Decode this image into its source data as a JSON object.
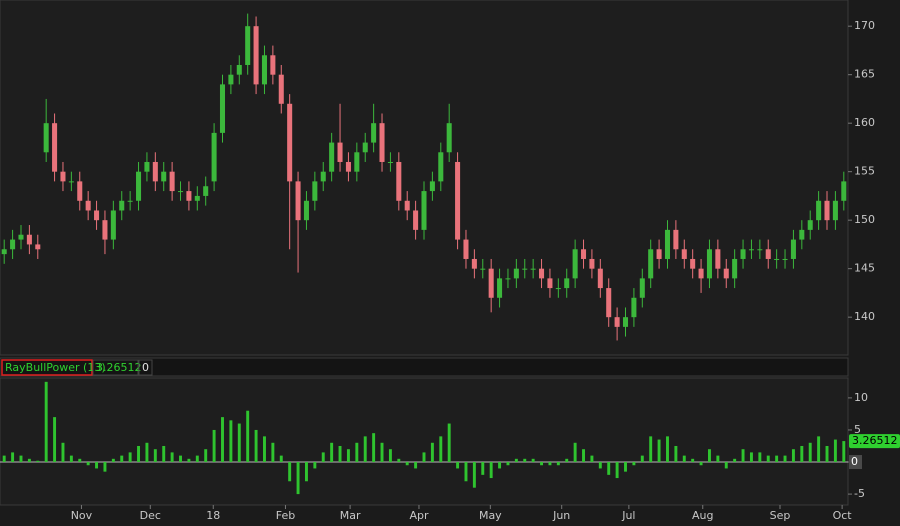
{
  "chart_data": [
    {
      "type": "candlestick",
      "up_color": "#3cb83c",
      "down_color": "#e9737b",
      "xlim": [
        -0.5,
        100.5
      ],
      "ylim": [
        136.1,
        172.7
      ],
      "yticks": [
        140,
        145,
        150,
        155,
        160,
        165,
        170
      ],
      "xticks": [
        {
          "value": 9.2,
          "label": "Nov"
        },
        {
          "value": 17.4,
          "label": "Dec"
        },
        {
          "value": 24.9,
          "label": "18"
        },
        {
          "value": 33.5,
          "label": "Feb"
        },
        {
          "value": 41.2,
          "label": "Mar"
        },
        {
          "value": 49.4,
          "label": "Apr"
        },
        {
          "value": 57.9,
          "label": "May"
        },
        {
          "value": 66.4,
          "label": "Jun"
        },
        {
          "value": 74.4,
          "label": "Jul"
        },
        {
          "value": 83.2,
          "label": "Aug"
        },
        {
          "value": 92.4,
          "label": "Sep"
        },
        {
          "value": 99.8,
          "label": "Oct"
        }
      ],
      "open": [
        146.5,
        147,
        148,
        148.5,
        147.5,
        157,
        160,
        155,
        154,
        154,
        152,
        151,
        150,
        148,
        151,
        152,
        152,
        155,
        156,
        154,
        155,
        153,
        153,
        152,
        152.5,
        154,
        159,
        164,
        165,
        166,
        170,
        164,
        167,
        165,
        162,
        154,
        150,
        152,
        154,
        155,
        158,
        156,
        155,
        157,
        158,
        160,
        156,
        156,
        152,
        151,
        149,
        153,
        154,
        157,
        156,
        148,
        146,
        145,
        145,
        142,
        144,
        144,
        145,
        145,
        145,
        144,
        143,
        143,
        144,
        147,
        146,
        145,
        143,
        140,
        139,
        140,
        142,
        144,
        147,
        146,
        149,
        147,
        146,
        145,
        144,
        147,
        145,
        144,
        146,
        147,
        147,
        147,
        146,
        146,
        146,
        148,
        149,
        150,
        152,
        150,
        152
      ],
      "high": [
        148,
        149,
        149.5,
        149.5,
        148.5,
        162.5,
        161,
        156,
        155,
        155,
        153,
        152,
        151,
        152,
        153,
        153,
        156,
        157,
        157,
        156,
        156,
        154,
        154,
        153.5,
        154.5,
        160,
        165,
        166,
        167,
        171.3,
        171,
        168,
        168,
        166,
        163,
        155,
        153,
        155,
        156,
        159,
        162,
        157,
        158,
        159,
        162,
        161,
        157,
        157,
        153,
        152,
        154,
        155,
        158,
        162,
        157,
        149,
        147,
        146,
        146,
        145,
        145,
        146,
        146,
        146,
        146,
        145,
        144,
        145,
        148,
        148,
        147,
        146,
        144,
        141,
        141,
        143,
        145,
        148,
        148,
        150,
        150,
        148,
        147,
        146,
        148,
        148,
        146,
        147,
        148,
        148,
        148,
        148,
        147,
        147,
        149,
        150,
        151,
        153,
        153,
        153,
        155
      ],
      "low": [
        145.5,
        146,
        147,
        146.5,
        146,
        156,
        154,
        153,
        153,
        151,
        150,
        149,
        146.5,
        147,
        150,
        151,
        151,
        154,
        153,
        153,
        152,
        152,
        151,
        151,
        151.5,
        153,
        158,
        163,
        164,
        165,
        163,
        163,
        164,
        161,
        147,
        144.6,
        149,
        151,
        153,
        154,
        155,
        154,
        154,
        156,
        157,
        155,
        155,
        151,
        150,
        148,
        148,
        152,
        153,
        156,
        147,
        145,
        144,
        144,
        140.5,
        141,
        143,
        143,
        144,
        144,
        143,
        142,
        142,
        142,
        143,
        145,
        144,
        142,
        139,
        137.6,
        138,
        139,
        141,
        143,
        145,
        145,
        146,
        145,
        144,
        142.5,
        143,
        144,
        143,
        143,
        145,
        146,
        146,
        145,
        145,
        145,
        145,
        147,
        148,
        149,
        149,
        149,
        151
      ],
      "close": [
        147,
        148,
        148.5,
        147.5,
        147,
        160,
        155,
        154,
        154,
        152,
        151,
        150,
        148,
        151,
        152,
        152,
        155,
        156,
        154,
        155,
        153,
        153,
        152,
        152.5,
        153.5,
        159,
        164,
        165,
        166,
        170,
        164,
        167,
        165,
        162,
        154,
        150,
        152,
        154,
        155,
        158,
        156,
        155,
        157,
        158,
        160,
        156,
        156,
        152,
        151,
        149,
        153,
        154,
        157,
        160,
        148,
        146,
        145,
        145,
        142,
        144,
        144,
        145,
        145,
        145,
        144,
        143,
        143,
        144,
        147,
        146,
        145,
        143,
        140,
        139,
        140,
        142,
        144,
        147,
        146,
        149,
        147,
        146,
        145,
        144,
        147,
        145,
        144,
        146,
        147,
        147,
        147,
        146,
        146,
        146,
        148,
        149,
        150,
        152,
        150,
        152,
        154
      ]
    },
    {
      "type": "bar",
      "title": "RayBullPower (13)",
      "color": "#2fc42f",
      "xlim": [
        -0.5,
        100.5
      ],
      "ylim": [
        -6.7,
        13.1
      ],
      "yticks": [
        -5,
        0,
        5,
        10
      ],
      "zero_line": 0,
      "values": [
        1,
        1.5,
        1,
        0.5,
        0.2,
        12.5,
        7,
        3,
        1,
        0.5,
        -0.5,
        -1,
        -1.5,
        0.5,
        1,
        1.5,
        2.5,
        3,
        2,
        2.5,
        1.5,
        1,
        0.5,
        1,
        2,
        5,
        7,
        6.5,
        6,
        8,
        5,
        4,
        3,
        1,
        -3,
        -5,
        -3,
        -1,
        1.5,
        3,
        2.5,
        2,
        3,
        4,
        4.5,
        3,
        2,
        0.5,
        -0.5,
        -1,
        1.5,
        3,
        4,
        6,
        -1,
        -3,
        -4,
        -2,
        -2.5,
        -1,
        -0.5,
        0.5,
        0.5,
        0.5,
        -0.5,
        -0.5,
        -0.5,
        0.5,
        3,
        2,
        1,
        -1,
        -2,
        -2.5,
        -1.5,
        -0.5,
        1,
        4,
        3.5,
        4,
        2.5,
        1,
        0.5,
        -0.5,
        2,
        1,
        -1,
        0.5,
        2,
        1.5,
        1.5,
        1,
        1,
        1,
        2,
        2.5,
        3,
        4,
        2.5,
        3.5,
        3.26512
      ]
    }
  ]
}
